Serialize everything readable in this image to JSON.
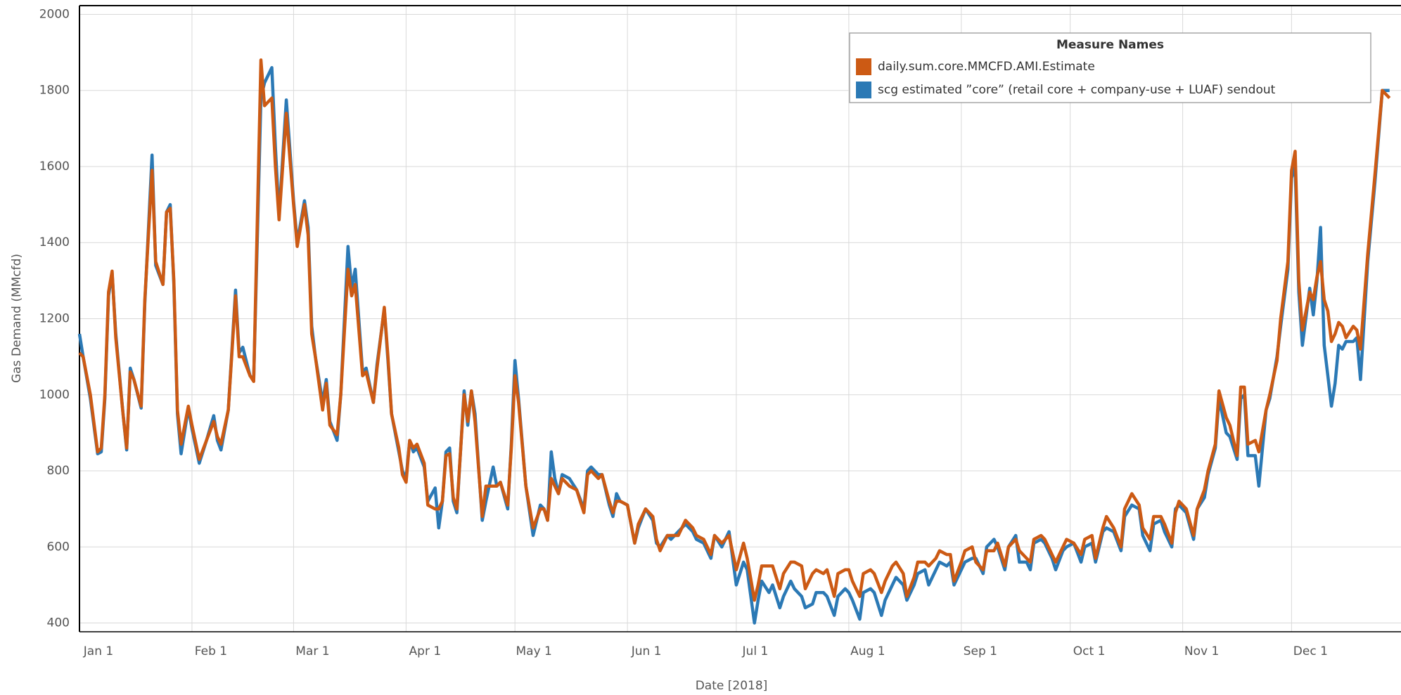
{
  "chart_data": {
    "type": "line",
    "x_label": "Date [2018]",
    "y_label": "Gas Demand (MMcfd)",
    "legend_title": "Measure Names",
    "legend": "top-right",
    "grid": true,
    "xlim": [
      "2018-01-01",
      "2018-12-30"
    ],
    "xticks": [
      {
        "value": "2018-01-01",
        "label": "Jan 1"
      },
      {
        "value": "2018-02-01",
        "label": "Feb 1"
      },
      {
        "value": "2018-03-01",
        "label": "Mar 1"
      },
      {
        "value": "2018-04-01",
        "label": "Apr 1"
      },
      {
        "value": "2018-05-01",
        "label": "May 1"
      },
      {
        "value": "2018-06-01",
        "label": "Jun 1"
      },
      {
        "value": "2018-07-01",
        "label": "Jul 1"
      },
      {
        "value": "2018-08-01",
        "label": "Aug 1"
      },
      {
        "value": "2018-09-01",
        "label": "Sep 1"
      },
      {
        "value": "2018-10-01",
        "label": "Oct 1"
      },
      {
        "value": "2018-11-01",
        "label": "Nov 1"
      },
      {
        "value": "2018-12-01",
        "label": "Dec 1"
      }
    ],
    "ylim": [
      377,
      2023
    ],
    "yticks": [
      400,
      600,
      800,
      1000,
      1200,
      1400,
      1600,
      1800,
      2000
    ],
    "x": [
      "2018-01-01",
      "2018-01-02",
      "2018-01-04",
      "2018-01-06",
      "2018-01-07",
      "2018-01-08",
      "2018-01-09",
      "2018-01-10",
      "2018-01-11",
      "2018-01-13",
      "2018-01-14",
      "2018-01-15",
      "2018-01-16",
      "2018-01-18",
      "2018-01-19",
      "2018-01-21",
      "2018-01-22",
      "2018-01-24",
      "2018-01-25",
      "2018-01-26",
      "2018-01-27",
      "2018-01-28",
      "2018-01-29",
      "2018-01-31",
      "2018-02-01",
      "2018-02-03",
      "2018-02-05",
      "2018-02-07",
      "2018-02-08",
      "2018-02-09",
      "2018-02-11",
      "2018-02-13",
      "2018-02-14",
      "2018-02-15",
      "2018-02-17",
      "2018-02-18",
      "2018-02-20",
      "2018-02-21",
      "2018-02-23",
      "2018-02-24",
      "2018-02-25",
      "2018-02-27",
      "2018-03-01",
      "2018-03-02",
      "2018-03-04",
      "2018-03-05",
      "2018-03-06",
      "2018-03-07",
      "2018-03-09",
      "2018-03-10",
      "2018-03-11",
      "2018-03-13",
      "2018-03-14",
      "2018-03-16",
      "2018-03-17",
      "2018-03-18",
      "2018-03-20",
      "2018-03-21",
      "2018-03-23",
      "2018-03-24",
      "2018-03-26",
      "2018-03-27",
      "2018-03-28",
      "2018-03-30",
      "2018-03-31",
      "2018-04-01",
      "2018-04-02",
      "2018-04-03",
      "2018-04-04",
      "2018-04-06",
      "2018-04-07",
      "2018-04-09",
      "2018-04-10",
      "2018-04-11",
      "2018-04-12",
      "2018-04-13",
      "2018-04-14",
      "2018-04-15",
      "2018-04-17",
      "2018-04-18",
      "2018-04-19",
      "2018-04-20",
      "2018-04-22",
      "2018-04-23",
      "2018-04-25",
      "2018-04-26",
      "2018-04-27",
      "2018-04-29",
      "2018-04-30",
      "2018-05-01",
      "2018-05-02",
      "2018-05-04",
      "2018-05-06",
      "2018-05-08",
      "2018-05-09",
      "2018-05-10",
      "2018-05-11",
      "2018-05-12",
      "2018-05-13",
      "2018-05-14",
      "2018-05-16",
      "2018-05-18",
      "2018-05-20",
      "2018-05-21",
      "2018-05-22",
      "2018-05-24",
      "2018-05-25",
      "2018-05-27",
      "2018-05-28",
      "2018-05-29",
      "2018-05-30",
      "2018-06-01",
      "2018-06-03",
      "2018-06-04",
      "2018-06-06",
      "2018-06-08",
      "2018-06-09",
      "2018-06-10",
      "2018-06-12",
      "2018-06-13",
      "2018-06-15",
      "2018-06-17",
      "2018-06-19",
      "2018-06-20",
      "2018-06-22",
      "2018-06-24",
      "2018-06-25",
      "2018-06-27",
      "2018-06-28",
      "2018-06-29",
      "2018-07-01",
      "2018-07-03",
      "2018-07-04",
      "2018-07-06",
      "2018-07-07",
      "2018-07-08",
      "2018-07-10",
      "2018-07-11",
      "2018-07-13",
      "2018-07-14",
      "2018-07-16",
      "2018-07-17",
      "2018-07-19",
      "2018-07-20",
      "2018-07-22",
      "2018-07-23",
      "2018-07-25",
      "2018-07-26",
      "2018-07-28",
      "2018-07-29",
      "2018-07-31",
      "2018-08-01",
      "2018-08-02",
      "2018-08-04",
      "2018-08-05",
      "2018-08-07",
      "2018-08-08",
      "2018-08-10",
      "2018-08-11",
      "2018-08-13",
      "2018-08-14",
      "2018-08-16",
      "2018-08-17",
      "2018-08-19",
      "2018-08-20",
      "2018-08-22",
      "2018-08-23",
      "2018-08-25",
      "2018-08-26",
      "2018-08-28",
      "2018-08-29",
      "2018-08-30",
      "2018-09-01",
      "2018-09-02",
      "2018-09-04",
      "2018-09-05",
      "2018-09-07",
      "2018-09-08",
      "2018-09-10",
      "2018-09-11",
      "2018-09-13",
      "2018-09-14",
      "2018-09-16",
      "2018-09-17",
      "2018-09-19",
      "2018-09-20",
      "2018-09-21",
      "2018-09-23",
      "2018-09-24",
      "2018-09-26",
      "2018-09-27",
      "2018-09-29",
      "2018-09-30",
      "2018-10-02",
      "2018-10-04",
      "2018-10-05",
      "2018-10-07",
      "2018-10-08",
      "2018-10-10",
      "2018-10-11",
      "2018-10-13",
      "2018-10-15",
      "2018-10-16",
      "2018-10-18",
      "2018-10-20",
      "2018-10-21",
      "2018-10-23",
      "2018-10-24",
      "2018-10-26",
      "2018-10-27",
      "2018-10-29",
      "2018-10-30",
      "2018-10-31",
      "2018-11-02",
      "2018-11-04",
      "2018-11-05",
      "2018-11-07",
      "2018-11-08",
      "2018-11-10",
      "2018-11-11",
      "2018-11-13",
      "2018-11-14",
      "2018-11-16",
      "2018-11-17",
      "2018-11-18",
      "2018-11-19",
      "2018-11-21",
      "2018-11-22",
      "2018-11-24",
      "2018-11-25",
      "2018-11-27",
      "2018-11-28",
      "2018-11-30",
      "2018-12-01",
      "2018-12-02",
      "2018-12-03",
      "2018-12-04",
      "2018-12-06",
      "2018-12-07",
      "2018-12-08",
      "2018-12-09",
      "2018-12-10",
      "2018-12-11",
      "2018-12-12",
      "2018-12-13",
      "2018-12-14",
      "2018-12-15",
      "2018-12-16",
      "2018-12-18",
      "2018-12-19",
      "2018-12-20",
      "2018-12-22",
      "2018-12-24",
      "2018-12-26",
      "2018-12-28"
    ],
    "series": [
      {
        "name": "daily.sum.core.MMCFD.AMI.Estimate",
        "color": "#cc5a14",
        "values": [
          1110,
          1100,
          1000,
          850,
          860,
          1000,
          1270,
          1325,
          1150,
          950,
          860,
          1060,
          1040,
          970,
          1250,
          1590,
          1350,
          1290,
          1480,
          1490,
          1300,
          960,
          870,
          970,
          920,
          830,
          880,
          930,
          890,
          870,
          960,
          1260,
          1100,
          1100,
          1050,
          1035,
          1880,
          1760,
          1780,
          1600,
          1460,
          1740,
          1500,
          1390,
          1500,
          1420,
          1160,
          1100,
          960,
          1030,
          920,
          895,
          1000,
          1330,
          1260,
          1290,
          1050,
          1060,
          980,
          1070,
          1230,
          1100,
          950,
          860,
          790,
          770,
          880,
          860,
          870,
          820,
          710,
          700,
          700,
          720,
          840,
          845,
          730,
          700,
          1000,
          930,
          1010,
          930,
          680,
          760,
          760,
          760,
          770,
          710,
          860,
          1050,
          980,
          760,
          650,
          700,
          700,
          670,
          780,
          760,
          740,
          780,
          760,
          750,
          690,
          790,
          800,
          780,
          790,
          720,
          690,
          720,
          720,
          710,
          610,
          660,
          700,
          680,
          620,
          590,
          630,
          630,
          630,
          670,
          650,
          630,
          620,
          580,
          630,
          610,
          620,
          630,
          540,
          610,
          570,
          460,
          500,
          550,
          550,
          550,
          490,
          530,
          560,
          560,
          550,
          490,
          530,
          540,
          530,
          540,
          470,
          530,
          540,
          540,
          510,
          470,
          530,
          540,
          530,
          480,
          510,
          550,
          560,
          530,
          470,
          520,
          560,
          560,
          550,
          570,
          590,
          580,
          580,
          510,
          560,
          590,
          600,
          560,
          540,
          590,
          590,
          610,
          550,
          600,
          620,
          590,
          570,
          560,
          620,
          630,
          620,
          580,
          560,
          600,
          620,
          610,
          580,
          620,
          630,
          570,
          650,
          680,
          650,
          600,
          700,
          740,
          710,
          650,
          620,
          680,
          680,
          660,
          610,
          690,
          720,
          700,
          630,
          700,
          750,
          800,
          870,
          1010,
          940,
          920,
          840,
          1020,
          1020,
          870,
          880,
          850,
          960,
          1000,
          1090,
          1200,
          1350,
          1590,
          1640,
          1300,
          1170,
          1270,
          1250,
          1310,
          1350,
          1250,
          1220,
          1140,
          1160,
          1190,
          1180,
          1150,
          1180,
          1170,
          1120,
          1370,
          1580,
          1800,
          1780
        ]
      },
      {
        "name": "scg estimated ”core” (retail core + company-use + LUAF) sendout",
        "color": "#2b79b5",
        "values": [
          1160,
          1100,
          990,
          845,
          850,
          990,
          1260,
          1320,
          1160,
          950,
          855,
          1070,
          1040,
          965,
          1240,
          1630,
          1340,
          1290,
          1480,
          1500,
          1290,
          950,
          845,
          965,
          910,
          820,
          880,
          945,
          880,
          855,
          960,
          1275,
          1110,
          1125,
          1050,
          1040,
          1780,
          1820,
          1860,
          1650,
          1470,
          1775,
          1510,
          1400,
          1510,
          1440,
          1180,
          1100,
          980,
          1040,
          930,
          880,
          1000,
          1390,
          1280,
          1330,
          1060,
          1070,
          980,
          1080,
          1225,
          1090,
          950,
          850,
          800,
          780,
          880,
          850,
          860,
          810,
          720,
          755,
          650,
          720,
          850,
          860,
          720,
          690,
          1010,
          920,
          1010,
          950,
          670,
          720,
          810,
          760,
          770,
          700,
          870,
          1090,
          990,
          760,
          630,
          710,
          700,
          670,
          850,
          780,
          740,
          790,
          780,
          750,
          700,
          800,
          810,
          790,
          790,
          710,
          680,
          740,
          720,
          710,
          610,
          650,
          700,
          670,
          610,
          600,
          630,
          620,
          640,
          660,
          640,
          620,
          610,
          570,
          630,
          600,
          620,
          640,
          500,
          560,
          540,
          400,
          460,
          510,
          480,
          500,
          440,
          470,
          510,
          490,
          470,
          440,
          450,
          480,
          480,
          470,
          420,
          470,
          490,
          480,
          460,
          410,
          480,
          490,
          480,
          420,
          460,
          500,
          520,
          500,
          460,
          500,
          530,
          540,
          500,
          540,
          560,
          550,
          560,
          500,
          540,
          560,
          570,
          570,
          530,
          600,
          620,
          600,
          540,
          600,
          630,
          560,
          560,
          540,
          610,
          620,
          610,
          570,
          540,
          590,
          600,
          610,
          560,
          600,
          610,
          560,
          640,
          650,
          640,
          590,
          680,
          710,
          700,
          630,
          590,
          660,
          670,
          640,
          600,
          700,
          710,
          690,
          620,
          700,
          730,
          790,
          860,
          990,
          900,
          890,
          830,
          990,
          1000,
          840,
          840,
          760,
          960,
          990,
          1100,
          1180,
          1330,
          1570,
          1600,
          1270,
          1130,
          1280,
          1210,
          1300,
          1440,
          1130,
          1050,
          970,
          1030,
          1130,
          1120,
          1140,
          1140,
          1150,
          1040,
          1350,
          1560,
          1800,
          1800
        ]
      }
    ]
  }
}
